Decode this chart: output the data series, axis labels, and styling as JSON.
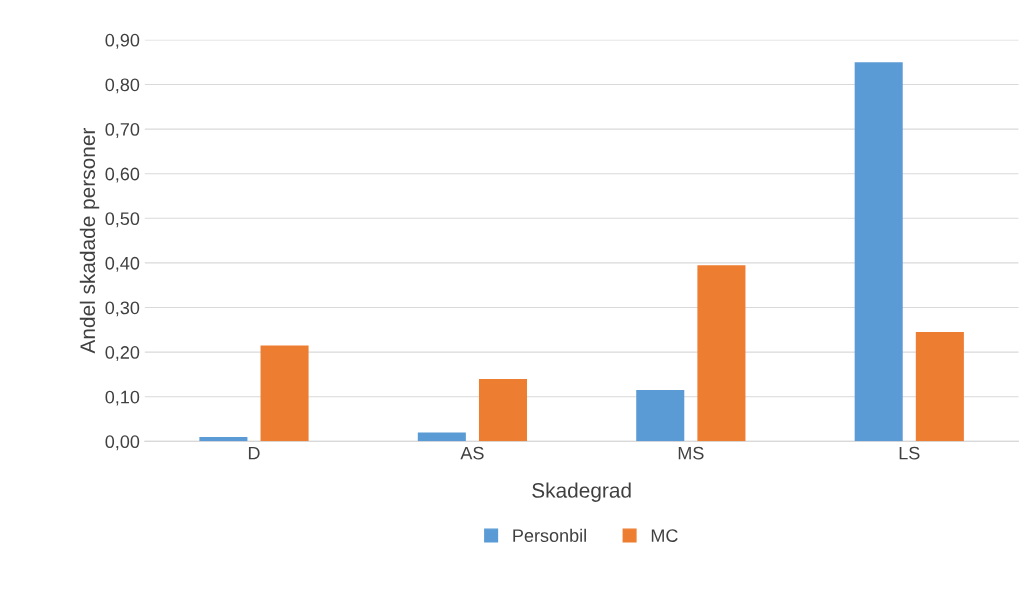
{
  "chart_data": {
    "type": "bar",
    "xlabel": "Skadegrad",
    "ylabel": "Andel skadade personer",
    "categories": [
      "D",
      "AS",
      "MS",
      "LS"
    ],
    "series": [
      {
        "name": "Personbil",
        "color": "#5b9bd5",
        "values": [
          0.01,
          0.02,
          0.115,
          0.85
        ]
      },
      {
        "name": "MC",
        "color": "#ed7d31",
        "values": [
          0.215,
          0.14,
          0.395,
          0.245
        ]
      }
    ],
    "ylim": [
      0,
      0.9
    ],
    "yticks": [
      {
        "value": 0,
        "label": "0,00"
      },
      {
        "value": 0.1,
        "label": "0,10"
      },
      {
        "value": 0.2,
        "label": "0,20"
      },
      {
        "value": 0.3,
        "label": "0,30"
      },
      {
        "value": 0.4,
        "label": "0,40"
      },
      {
        "value": 0.5,
        "label": "0,50"
      },
      {
        "value": 0.6,
        "label": "0,60"
      },
      {
        "value": 0.7,
        "label": "0,70"
      },
      {
        "value": 0.8,
        "label": "0,80"
      },
      {
        "value": 0.9,
        "label": "0,90"
      }
    ],
    "grid": "y",
    "legend": "bottom"
  }
}
